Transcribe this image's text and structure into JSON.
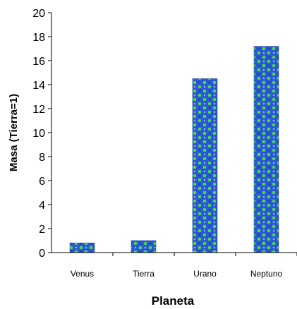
{
  "chart_data": {
    "type": "bar",
    "categories": [
      "Venus",
      "Tierra",
      "Urano",
      "Neptuno"
    ],
    "values": [
      0.8,
      1.0,
      14.5,
      17.2
    ],
    "title": "",
    "xlabel": "Planeta",
    "ylabel": "Masa (Tierra=1)",
    "ylim": [
      0,
      20
    ],
    "yticks": [
      0,
      2,
      4,
      6,
      8,
      10,
      12,
      14,
      16,
      18,
      20
    ],
    "grid": false,
    "legend": "none",
    "bar_fill": "textured blue/green",
    "colors": {
      "bar_base": "#1f4fd0",
      "bar_spot": "#3fd93f",
      "axis": "#000000"
    }
  }
}
